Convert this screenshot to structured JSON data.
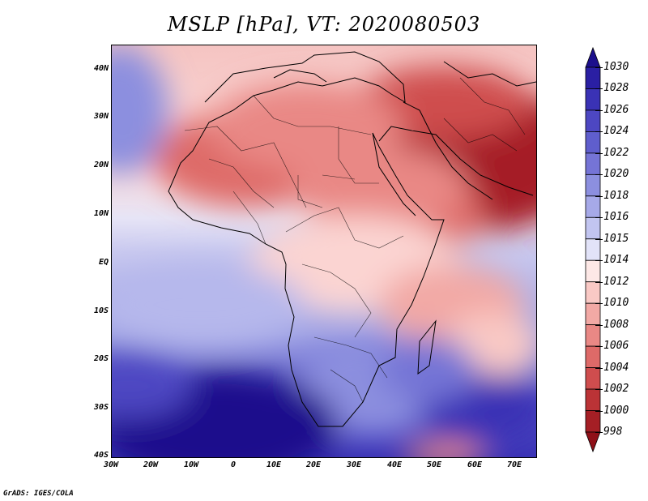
{
  "title": "MSLP [hPa], VT: 2020080503",
  "credit": "GrADS: IGES/COLA",
  "map": {
    "variable": "MSLP",
    "units": "hPa",
    "valid_time": "2020080503",
    "region": "Africa and Middle East",
    "lat_labels": [
      "40N",
      "30N",
      "20N",
      "10N",
      "EQ",
      "10S",
      "20S",
      "30S",
      "40S"
    ],
    "lon_labels": [
      "30W",
      "20W",
      "10W",
      "0",
      "10E",
      "20E",
      "30E",
      "40E",
      "50E",
      "60E",
      "70E"
    ]
  },
  "colorbar": {
    "levels": [
      "1030",
      "1028",
      "1026",
      "1024",
      "1022",
      "1020",
      "1018",
      "1016",
      "1015",
      "1014",
      "1012",
      "1010",
      "1008",
      "1006",
      "1004",
      "1002",
      "1000",
      "998"
    ],
    "colors": [
      "#1c0f8c",
      "#2a1fa3",
      "#3a32b5",
      "#4d47c2",
      "#5f5ecd",
      "#7574d6",
      "#8c8fdf",
      "#a6a9e8",
      "#c2c5f0",
      "#e2e3f8",
      "#fde8e6",
      "#f9c9c5",
      "#f2a9a5",
      "#e98885",
      "#de6a68",
      "#cf4d4e",
      "#bb3336",
      "#a51f25",
      "#8f1018"
    ]
  }
}
